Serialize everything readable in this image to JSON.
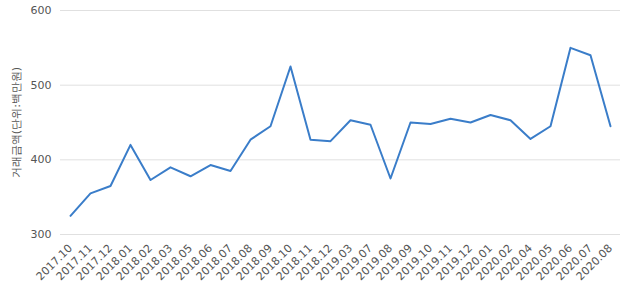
{
  "chart_data": {
    "type": "line",
    "y_label": "거래금액(단위:백만원)",
    "categories": [
      "2017.10",
      "2017.11",
      "2017.12",
      "2018.01",
      "2018.02",
      "2018.03",
      "2018.05",
      "2018.06",
      "2018.07",
      "2018.08",
      "2018.09",
      "2018.10",
      "2018.11",
      "2018.12",
      "2019.03",
      "2019.07",
      "2019.08",
      "2019.09",
      "2019.10",
      "2019.11",
      "2019.12",
      "2020.01",
      "2020.02",
      "2020.04",
      "2020.05",
      "2020.06",
      "2020.07",
      "2020.08"
    ],
    "values": [
      325,
      355,
      365,
      420,
      373,
      390,
      378,
      393,
      385,
      427,
      445,
      525,
      427,
      425,
      453,
      447,
      375,
      450,
      448,
      455,
      450,
      460,
      453,
      428,
      445,
      550,
      540,
      445
    ],
    "color": "#3a7dc9",
    "ylim": [
      300,
      600
    ],
    "yticks": [
      300,
      400,
      500,
      600
    ],
    "grid": true
  }
}
